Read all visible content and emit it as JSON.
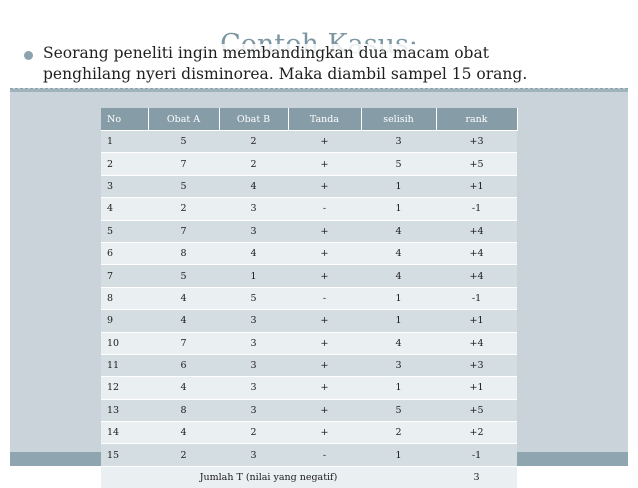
{
  "slide": {
    "title": "Contoh Kasus:",
    "bullet_line1": "Seorang peneliti ingin membandingkan dua macam obat",
    "bullet_line2": "penghilang nyeri disminorea. Maka diambil sampel 15 orang."
  },
  "table": {
    "headers": [
      "No",
      "Obat A",
      "Obat B",
      "Tanda",
      "selisih",
      "rank"
    ],
    "rows": [
      [
        "1",
        "5",
        "2",
        "+",
        "3",
        "+3"
      ],
      [
        "2",
        "7",
        "2",
        "+",
        "5",
        "+5"
      ],
      [
        "3",
        "5",
        "4",
        "+",
        "1",
        "+1"
      ],
      [
        "4",
        "2",
        "3",
        "-",
        "1",
        "-1"
      ],
      [
        "5",
        "7",
        "3",
        "+",
        "4",
        "+4"
      ],
      [
        "6",
        "8",
        "4",
        "+",
        "4",
        "+4"
      ],
      [
        "7",
        "5",
        "1",
        "+",
        "4",
        "+4"
      ],
      [
        "8",
        "4",
        "5",
        "-",
        "1",
        "-1"
      ],
      [
        "9",
        "4",
        "3",
        "+",
        "1",
        "+1"
      ],
      [
        "10",
        "7",
        "3",
        "+",
        "4",
        "+4"
      ],
      [
        "11",
        "6",
        "3",
        "+",
        "3",
        "+3"
      ],
      [
        "12",
        "4",
        "3",
        "+",
        "1",
        "+1"
      ],
      [
        "13",
        "8",
        "3",
        "+",
        "5",
        "+5"
      ],
      [
        "14",
        "4",
        "2",
        "+",
        "2",
        "+2"
      ],
      [
        "15",
        "2",
        "3",
        "-",
        "1",
        "-1"
      ]
    ],
    "total_label": "Jumlah T (nilai yang negatif)",
    "total_value": "3"
  },
  "colors": {
    "accent": "#869da8",
    "title": "#7c96a1",
    "row_odd": "#d4dde2",
    "row_even": "#eaeff1",
    "panel": "#c9d3d9"
  },
  "icons": {
    "bullet": "bullet-dot-icon"
  }
}
